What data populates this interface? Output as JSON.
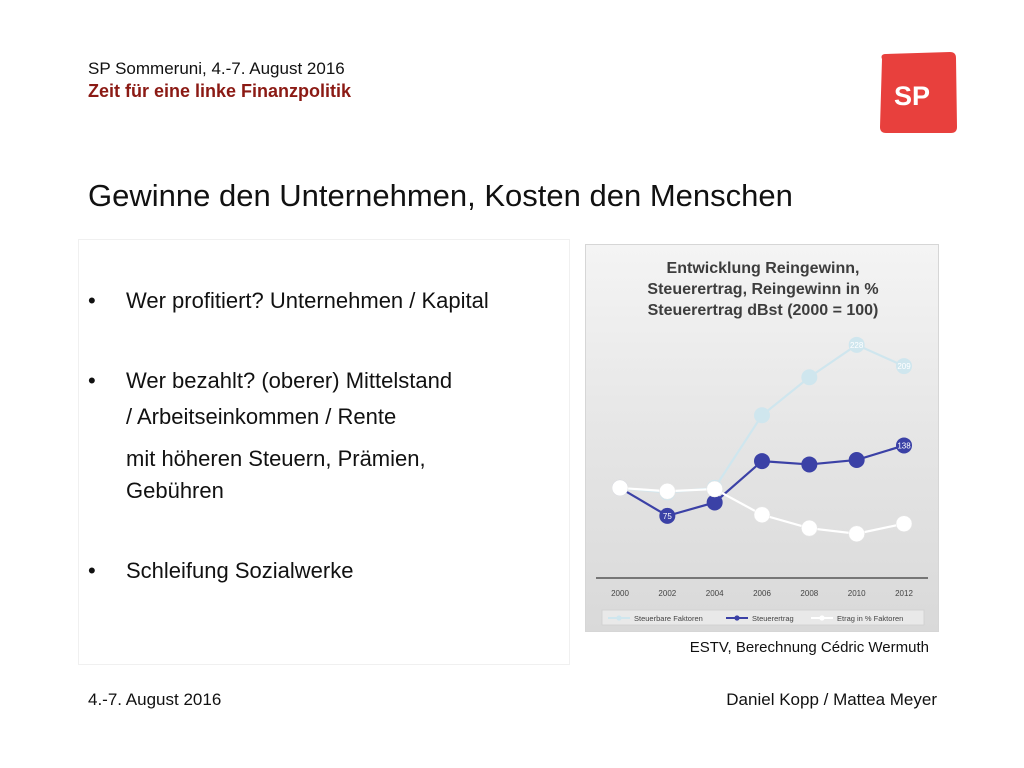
{
  "header": {
    "event": "SP Sommeruni, 4.-7. August 2016",
    "subtitle": "Zeit für eine linke Finanzpolitik",
    "logo_text": "SP",
    "logo_color": "#e8403d"
  },
  "title": "Gewinne den Unternehmen, Kosten den Menschen",
  "bullets": [
    {
      "text": "Wer profitiert? Unternehmen / Kapital",
      "cont": []
    },
    {
      "text": "Wer bezahlt? (oberer) Mittelstand",
      "cont": [
        "/ Arbeitseinkommen / Rente",
        "mit höheren Steuern, Prämien,",
        "Gebühren"
      ]
    },
    {
      "text": "Schleifung Sozialwerke",
      "cont": []
    }
  ],
  "bullet_symbol": "•",
  "chart_data": {
    "type": "line",
    "title": "Entwicklung Reingewinn, Steuerertrag, Reingewinn in % Steuerertrag dBst (2000 = 100)",
    "title_lines": [
      "Entwicklung Reingewinn,",
      "Steuerertrag, Reingewinn in %",
      "Steuerertrag dBst (2000 = 100)"
    ],
    "x": [
      2000,
      2002,
      2004,
      2006,
      2008,
      2010,
      2012
    ],
    "series": [
      {
        "name": "Steuerbare Faktoren",
        "color": "#cfe6ee",
        "values": [
          100,
          96,
          100,
          165,
          199,
          228,
          209
        ]
      },
      {
        "name": "Steuerertrag",
        "color": "#3b41a6",
        "values": [
          100,
          75,
          87,
          124,
          121,
          125,
          138
        ]
      },
      {
        "name": "Etrag in % Faktoren",
        "color": "#ffffff",
        "values": [
          100,
          97,
          99,
          76,
          64,
          59,
          68
        ]
      }
    ],
    "data_labels": [
      {
        "series": 0,
        "index": 5,
        "text": "228"
      },
      {
        "series": 0,
        "index": 6,
        "text": "209"
      },
      {
        "series": 1,
        "index": 1,
        "text": "75"
      },
      {
        "series": 1,
        "index": 6,
        "text": "138"
      }
    ],
    "ylim": [
      40,
      235
    ],
    "grid": false,
    "legend": "bottom"
  },
  "caption": "ESTV, Berechnung Cédric Wermuth",
  "footer": {
    "date": "4.-7. August 2016",
    "authors": "Daniel Kopp / Mattea Meyer"
  }
}
